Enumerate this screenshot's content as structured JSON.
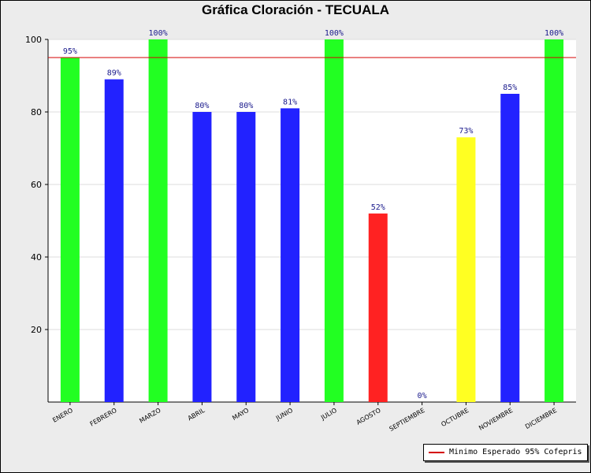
{
  "chart_data": {
    "type": "bar",
    "title": "Gráfica Cloración - TECUALA",
    "xlabel": "",
    "ylabel": "",
    "ylim": [
      0,
      100
    ],
    "yticks": [
      20,
      40,
      60,
      80,
      100
    ],
    "categories": [
      "ENERO",
      "FEBRERO",
      "MARZO",
      "ABRIL",
      "MAYO",
      "JUNIO",
      "JULIO",
      "AGOSTO",
      "SEPTIEMBRE",
      "OCTUBRE",
      "NOVIEMBRE",
      "DICIEMBRE"
    ],
    "values": [
      95,
      89,
      100,
      80,
      80,
      81,
      100,
      52,
      0,
      73,
      85,
      100
    ],
    "data_labels": [
      "95%",
      "89%",
      "100%",
      "80%",
      "80%",
      "81%",
      "100%",
      "52%",
      "0%",
      "73%",
      "85%",
      "100%"
    ],
    "bar_colors": [
      "#22ff22",
      "#2222ff",
      "#22ff22",
      "#2222ff",
      "#2222ff",
      "#2222ff",
      "#22ff22",
      "#ff2222",
      "#2222ff",
      "#ffff22",
      "#2222ff",
      "#22ff22"
    ],
    "reference_line": {
      "value": 95,
      "label": "Minimo Esperado 95% Cofepris",
      "color": "#d40000"
    },
    "legend_position": "bottom-right",
    "grid": true
  }
}
